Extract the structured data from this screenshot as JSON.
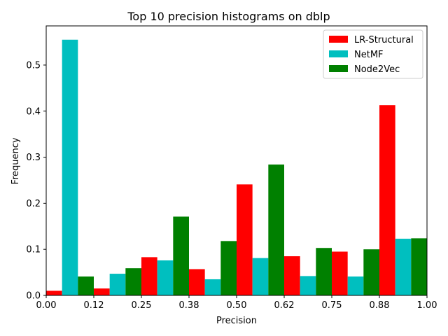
{
  "chart_data": {
    "type": "bar",
    "title": "Top 10 precision histograms on dblp",
    "xlabel": "Precision",
    "ylabel": "Frequency",
    "xlim": [
      0.0,
      1.0
    ],
    "ylim": [
      0.0,
      0.585
    ],
    "x_tick_values": [
      0.0,
      0.125,
      0.25,
      0.375,
      0.5,
      0.625,
      0.75,
      0.875,
      1.0
    ],
    "x_tick_labels": [
      "0.00",
      "0.12",
      "0.25",
      "0.38",
      "0.50",
      "0.62",
      "0.75",
      "0.88",
      "1.00"
    ],
    "y_ticks": [
      0.0,
      0.1,
      0.2,
      0.3,
      0.4,
      0.5
    ],
    "y_tick_labels": [
      "0.0",
      "0.1",
      "0.2",
      "0.3",
      "0.4",
      "0.5"
    ],
    "bins": [
      0.0,
      0.125,
      0.25,
      0.375,
      0.5,
      0.625,
      0.75,
      0.875
    ],
    "bin_width": 0.125,
    "legend_position": "top-right",
    "series": [
      {
        "name": "LR-Structural",
        "color": "#ff0000",
        "values": [
          0.01,
          0.015,
          0.083,
          0.057,
          0.241,
          0.085,
          0.095,
          0.413
        ]
      },
      {
        "name": "NetMF",
        "color": "#00bfbf",
        "values": [
          0.555,
          0.047,
          0.076,
          0.035,
          0.081,
          0.042,
          0.041,
          0.123
        ]
      },
      {
        "name": "Node2Vec",
        "color": "#008000",
        "values": [
          0.041,
          0.059,
          0.171,
          0.118,
          0.284,
          0.103,
          0.1,
          0.124
        ]
      }
    ]
  }
}
